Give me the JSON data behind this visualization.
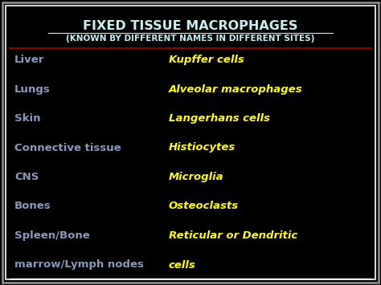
{
  "title_line1": "FIXED TISSUE MACROPHAGES",
  "title_line2": "(KNOWN BY DIFFERENT NAMES IN DIFFERENT SITES)",
  "background_color": "#000000",
  "border_color_outer": "#888888",
  "border_color_inner": "#ffffff",
  "title_color": "#c8f0f0",
  "left_color": "#8899bb",
  "right_color": "#ffff00",
  "divider_color": "#8b0000",
  "rows": [
    {
      "left": "Liver",
      "right": "Kupffer cells"
    },
    {
      "left": "Lungs",
      "right": "Alveolar macrophages"
    },
    {
      "left": "Skin",
      "right": "Langerhans cells"
    },
    {
      "left": "Connective tissue",
      "right": "Histiocytes"
    },
    {
      "left": "CNS",
      "right": "Microglia"
    },
    {
      "left": "Bones",
      "right": "Osteoclasts"
    },
    {
      "left": "Spleen/Bone",
      "right": "Reticular or Dendritic"
    },
    {
      "left": "marrow/Lymph nodes",
      "right": "cells"
    }
  ],
  "title1_fontsize": 11.5,
  "title2_fontsize": 7.5,
  "row_fontsize": 9.5,
  "figsize": [
    4.74,
    3.55
  ],
  "dpi": 100
}
